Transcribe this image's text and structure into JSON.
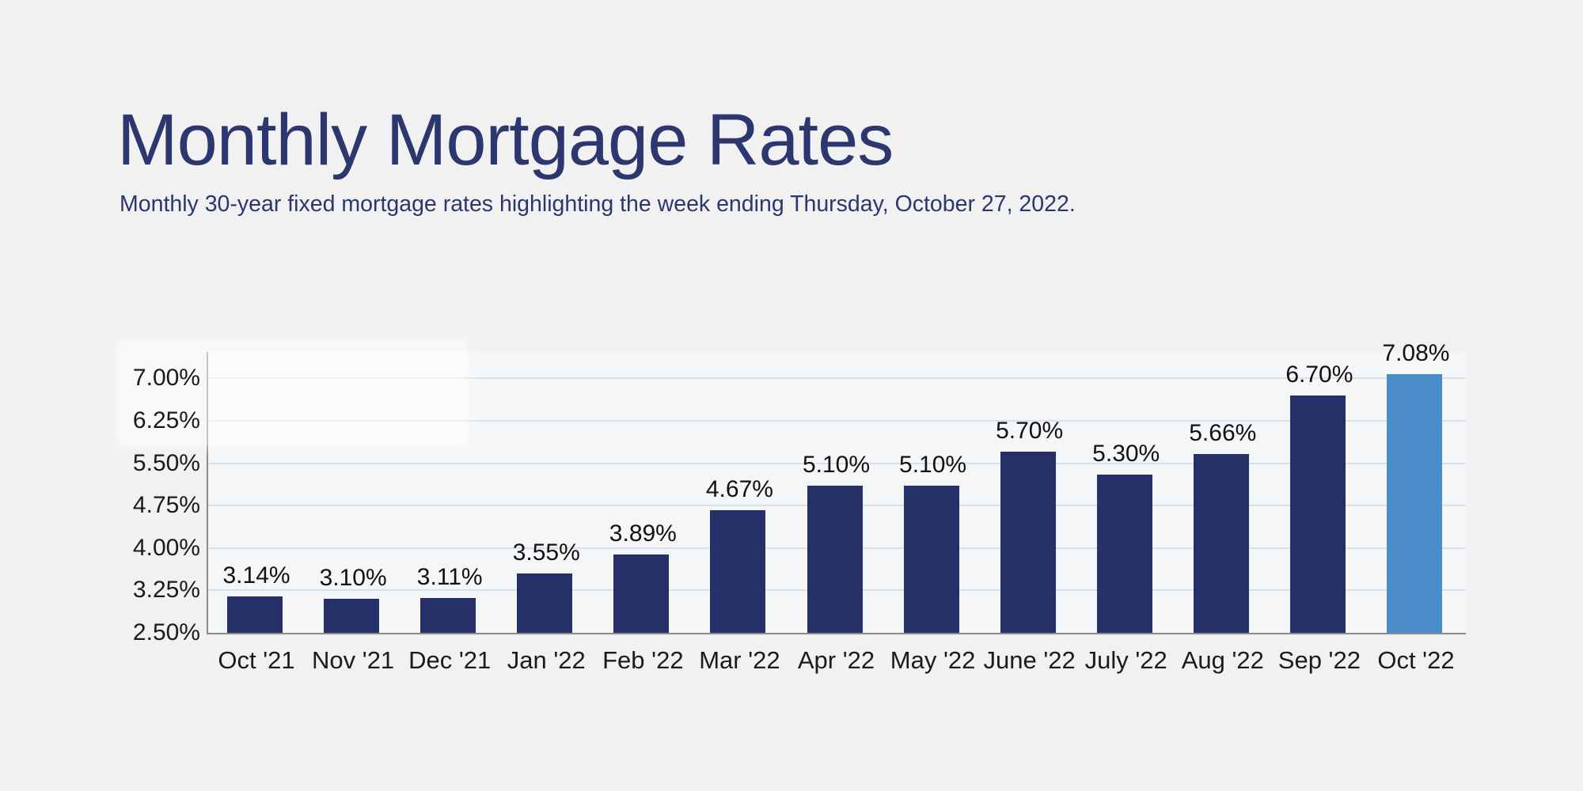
{
  "header": {
    "title": "Monthly Mortgage Rates",
    "subtitle": "Monthly 30-year fixed mortgage rates highlighting the week ending Thursday, October 27, 2022."
  },
  "chart_data": {
    "type": "bar",
    "title": "Monthly Mortgage Rates",
    "subtitle": "Monthly 30-year fixed mortgage rates highlighting the week ending Thursday, October 27, 2022.",
    "categories": [
      "Oct '21",
      "Nov '21",
      "Dec '21",
      "Jan '22",
      "Feb '22",
      "Mar '22",
      "Apr '22",
      "May '22",
      "June '22",
      "July '22",
      "Aug '22",
      "Sep '22",
      "Oct '22"
    ],
    "values": [
      3.14,
      3.1,
      3.11,
      3.55,
      3.89,
      4.67,
      5.1,
      5.1,
      5.7,
      5.3,
      5.66,
      6.7,
      7.08
    ],
    "value_labels": [
      "3.14%",
      "3.10%",
      "3.11%",
      "3.55%",
      "3.89%",
      "4.67%",
      "5.10%",
      "5.10%",
      "5.70%",
      "5.30%",
      "5.66%",
      "6.70%",
      "7.08%"
    ],
    "highlight_index": 12,
    "highlight_category": "Oct '22",
    "yticks": [
      7.0,
      6.25,
      5.5,
      4.75,
      4.0,
      3.25,
      2.5
    ],
    "ytick_labels": [
      "7.00%",
      "6.25%",
      "5.50%",
      "4.75%",
      "4.00%",
      "3.25%",
      "2.50%"
    ],
    "ylim": [
      2.5,
      7.45
    ],
    "xlabel": "",
    "ylabel": "",
    "grid": true,
    "legend": false,
    "bar_color": "#253068",
    "highlight_color": "#4a8cc7"
  },
  "colors": {
    "page_background": "#f1f1f2",
    "plot_background": "#f5f6f7",
    "title_text": "#2c366f",
    "subtitle_text": "#2c366f",
    "bar": "#253068",
    "highlight_bar": "#4a8cc7",
    "gridline": "#d9e1ee",
    "axis": "#8a8a8a",
    "tick_text": "#1b1b1b",
    "value_label_text": "#111111"
  }
}
